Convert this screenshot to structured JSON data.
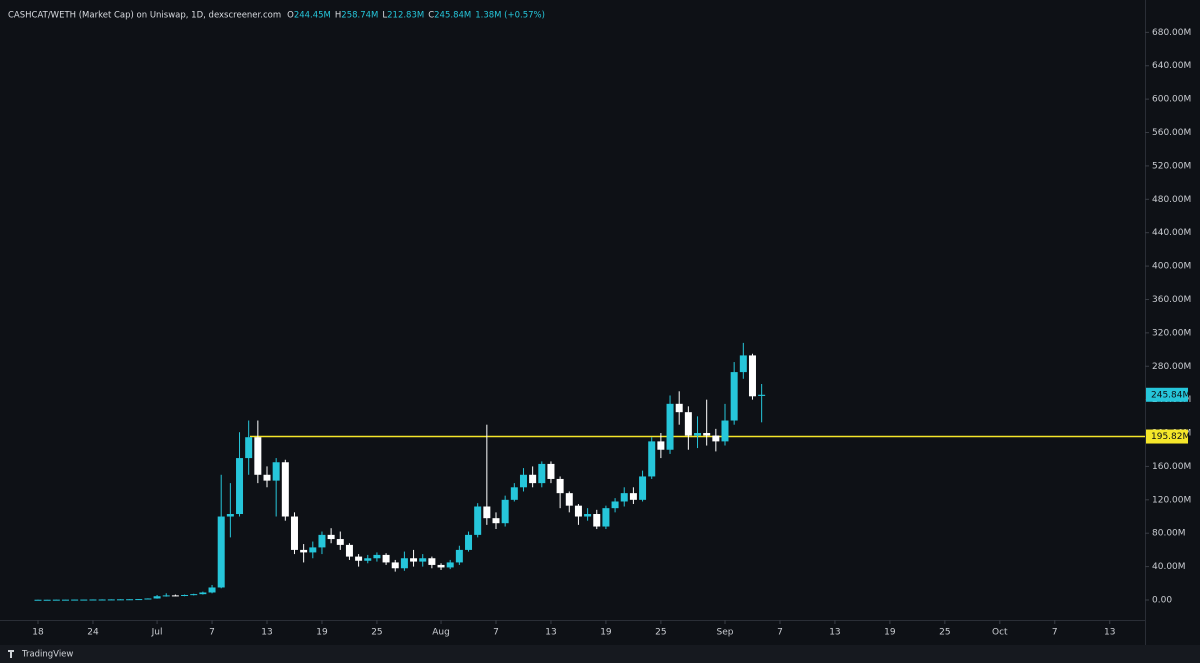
{
  "chart_data": {
    "type": "candlestick",
    "header": {
      "title": "CASHCAT/WETH (Market Cap) on Uniswap, 1D, dexscreener.com",
      "ohlc": [
        {
          "key": "O",
          "value": "244.45M"
        },
        {
          "key": "H",
          "value": "258.74M"
        },
        {
          "key": "L",
          "value": "212.83M"
        },
        {
          "key": "C",
          "value": "245.84M"
        }
      ],
      "change": "1.38M (+0.57%)"
    },
    "colors": {
      "up": "#26c6da",
      "down": "#ffffff",
      "level": "#f5e62a"
    },
    "ylim": [
      -12,
      708
    ],
    "yticks": [
      {
        "value": 0,
        "label": "0.00"
      },
      {
        "value": 40,
        "label": "40.00M"
      },
      {
        "value": 80,
        "label": "80.00M"
      },
      {
        "value": 120,
        "label": "120.00M"
      },
      {
        "value": 160,
        "label": "160.00M"
      },
      {
        "value": 200,
        "label": "200.00M"
      },
      {
        "value": 240,
        "label": "240.00M"
      },
      {
        "value": 280,
        "label": "280.00M"
      },
      {
        "value": 320,
        "label": "320.00M"
      },
      {
        "value": 360,
        "label": "360.00M"
      },
      {
        "value": 400,
        "label": "400.00M"
      },
      {
        "value": 440,
        "label": "440.00M"
      },
      {
        "value": 480,
        "label": "480.00M"
      },
      {
        "value": 520,
        "label": "520.00M"
      },
      {
        "value": 560,
        "label": "560.00M"
      },
      {
        "value": 600,
        "label": "600.00M"
      },
      {
        "value": 640,
        "label": "640.00M"
      },
      {
        "value": 680,
        "label": "680.00M"
      }
    ],
    "xticks": [
      {
        "value": "Jun 18",
        "label": "18"
      },
      {
        "value": "Jun 24",
        "label": "24"
      },
      {
        "value": "Jul 1",
        "label": "Jul"
      },
      {
        "value": "Jul 7",
        "label": "7"
      },
      {
        "value": "Jul 13",
        "label": "13"
      },
      {
        "value": "Jul 19",
        "label": "19"
      },
      {
        "value": "Jul 25",
        "label": "25"
      },
      {
        "value": "Aug 1",
        "label": "Aug"
      },
      {
        "value": "Aug 7",
        "label": "7"
      },
      {
        "value": "Aug 13",
        "label": "13"
      },
      {
        "value": "Aug 19",
        "label": "19"
      },
      {
        "value": "Aug 25",
        "label": "25"
      },
      {
        "value": "Sep 1",
        "label": "Sep"
      },
      {
        "value": "Sep 7",
        "label": "7"
      },
      {
        "value": "Sep 13",
        "label": "13"
      },
      {
        "value": "Sep 19",
        "label": "19"
      },
      {
        "value": "Sep 25",
        "label": "25"
      },
      {
        "value": "Oct 1",
        "label": "Oct"
      },
      {
        "value": "Oct 7",
        "label": "7"
      },
      {
        "value": "Oct 13",
        "label": "13"
      }
    ],
    "last_price": {
      "value": 245.84,
      "label": "245.84M"
    },
    "level": {
      "value": 195.82,
      "label": "195.82M"
    },
    "candles": [
      {
        "x": "Jun 18",
        "open": 0.3,
        "high": 0.4,
        "low": 0.2,
        "close": 0.3
      },
      {
        "x": "Jun 19",
        "open": 0.3,
        "high": 0.4,
        "low": 0.2,
        "close": 0.3
      },
      {
        "x": "Jun 20",
        "open": 0.3,
        "high": 0.5,
        "low": 0.2,
        "close": 0.4
      },
      {
        "x": "Jun 21",
        "open": 0.4,
        "high": 0.5,
        "low": 0.3,
        "close": 0.4
      },
      {
        "x": "Jun 22",
        "open": 0.4,
        "high": 0.6,
        "low": 0.3,
        "close": 0.5
      },
      {
        "x": "Jun 23",
        "open": 0.5,
        "high": 0.6,
        "low": 0.4,
        "close": 0.5
      },
      {
        "x": "Jun 24",
        "open": 0.5,
        "high": 0.7,
        "low": 0.4,
        "close": 0.6
      },
      {
        "x": "Jun 25",
        "open": 0.6,
        "high": 0.8,
        "low": 0.5,
        "close": 0.6
      },
      {
        "x": "Jun 26",
        "open": 0.6,
        "high": 0.8,
        "low": 0.5,
        "close": 0.7
      },
      {
        "x": "Jun 27",
        "open": 0.7,
        "high": 0.9,
        "low": 0.6,
        "close": 0.8
      },
      {
        "x": "Jun 28",
        "open": 0.8,
        "high": 1,
        "low": 0.7,
        "close": 0.9
      },
      {
        "x": "Jun 29",
        "open": 0.9,
        "high": 1.2,
        "low": 0.8,
        "close": 1.1
      },
      {
        "x": "Jun 30",
        "open": 1.1,
        "high": 2,
        "low": 1,
        "close": 1.8
      },
      {
        "x": "Jul 1",
        "open": 1.8,
        "high": 6,
        "low": 1.5,
        "close": 4.5
      },
      {
        "x": "Jul 2",
        "open": 4.5,
        "high": 8,
        "low": 4,
        "close": 5.5
      },
      {
        "x": "Jul 3",
        "open": 5.5,
        "high": 6.5,
        "low": 4.5,
        "close": 5
      },
      {
        "x": "Jul 4",
        "open": 5,
        "high": 6.5,
        "low": 4.5,
        "close": 6
      },
      {
        "x": "Jul 5",
        "open": 6,
        "high": 7.5,
        "low": 5.5,
        "close": 7
      },
      {
        "x": "Jul 6",
        "open": 7,
        "high": 10,
        "low": 6.5,
        "close": 9
      },
      {
        "x": "Jul 7",
        "open": 9,
        "high": 18,
        "low": 8,
        "close": 15
      },
      {
        "x": "Jul 8",
        "open": 15,
        "high": 150,
        "low": 14,
        "close": 100
      },
      {
        "x": "Jul 9",
        "open": 100,
        "high": 140,
        "low": 75,
        "close": 103
      },
      {
        "x": "Jul 10",
        "open": 103,
        "high": 201,
        "low": 100,
        "close": 170
      },
      {
        "x": "Jul 11",
        "open": 170,
        "high": 215,
        "low": 150,
        "close": 195
      },
      {
        "x": "Jul 12",
        "open": 195,
        "high": 215,
        "low": 140,
        "close": 150
      },
      {
        "x": "Jul 13",
        "open": 150,
        "high": 160,
        "low": 135,
        "close": 143
      },
      {
        "x": "Jul 14",
        "open": 143,
        "high": 170,
        "low": 100,
        "close": 165
      },
      {
        "x": "Jul 15",
        "open": 165,
        "high": 168,
        "low": 95,
        "close": 100
      },
      {
        "x": "Jul 16",
        "open": 100,
        "high": 105,
        "low": 55,
        "close": 60
      },
      {
        "x": "Jul 17",
        "open": 60,
        "high": 67,
        "low": 45,
        "close": 57
      },
      {
        "x": "Jul 18",
        "open": 57,
        "high": 70,
        "low": 50,
        "close": 63
      },
      {
        "x": "Jul 19",
        "open": 63,
        "high": 82,
        "low": 55,
        "close": 78
      },
      {
        "x": "Jul 20",
        "open": 78,
        "high": 86,
        "low": 68,
        "close": 73
      },
      {
        "x": "Jul 21",
        "open": 73,
        "high": 82,
        "low": 60,
        "close": 66
      },
      {
        "x": "Jul 22",
        "open": 66,
        "high": 68,
        "low": 48,
        "close": 52
      },
      {
        "x": "Jul 23",
        "open": 52,
        "high": 55,
        "low": 40,
        "close": 47
      },
      {
        "x": "Jul 24",
        "open": 47,
        "high": 54,
        "low": 44,
        "close": 50
      },
      {
        "x": "Jul 25",
        "open": 50,
        "high": 57,
        "low": 46,
        "close": 54
      },
      {
        "x": "Jul 26",
        "open": 54,
        "high": 56,
        "low": 42,
        "close": 45
      },
      {
        "x": "Jul 27",
        "open": 45,
        "high": 48,
        "low": 34,
        "close": 38
      },
      {
        "x": "Jul 28",
        "open": 38,
        "high": 58,
        "low": 35,
        "close": 50
      },
      {
        "x": "Jul 29",
        "open": 50,
        "high": 60,
        "low": 40,
        "close": 46
      },
      {
        "x": "Jul 30",
        "open": 46,
        "high": 55,
        "low": 40,
        "close": 50
      },
      {
        "x": "Jul 31",
        "open": 50,
        "high": 52,
        "low": 38,
        "close": 42
      },
      {
        "x": "Aug 1",
        "open": 42,
        "high": 44,
        "low": 36,
        "close": 39
      },
      {
        "x": "Aug 2",
        "open": 39,
        "high": 48,
        "low": 37,
        "close": 45
      },
      {
        "x": "Aug 3",
        "open": 45,
        "high": 65,
        "low": 42,
        "close": 60
      },
      {
        "x": "Aug 4",
        "open": 60,
        "high": 82,
        "low": 58,
        "close": 78
      },
      {
        "x": "Aug 5",
        "open": 78,
        "high": 116,
        "low": 75,
        "close": 112
      },
      {
        "x": "Aug 6",
        "open": 112,
        "high": 210,
        "low": 90,
        "close": 98
      },
      {
        "x": "Aug 7",
        "open": 98,
        "high": 105,
        "low": 85,
        "close": 92
      },
      {
        "x": "Aug 8",
        "open": 92,
        "high": 125,
        "low": 88,
        "close": 120
      },
      {
        "x": "Aug 9",
        "open": 120,
        "high": 140,
        "low": 118,
        "close": 135
      },
      {
        "x": "Aug 10",
        "open": 135,
        "high": 158,
        "low": 130,
        "close": 150
      },
      {
        "x": "Aug 11",
        "open": 150,
        "high": 160,
        "low": 135,
        "close": 140
      },
      {
        "x": "Aug 12",
        "open": 140,
        "high": 166,
        "low": 135,
        "close": 163
      },
      {
        "x": "Aug 13",
        "open": 163,
        "high": 166,
        "low": 140,
        "close": 145
      },
      {
        "x": "Aug 14",
        "open": 145,
        "high": 148,
        "low": 110,
        "close": 128
      },
      {
        "x": "Aug 15",
        "open": 128,
        "high": 130,
        "low": 105,
        "close": 113
      },
      {
        "x": "Aug 16",
        "open": 113,
        "high": 115,
        "low": 90,
        "close": 100
      },
      {
        "x": "Aug 17",
        "open": 100,
        "high": 110,
        "low": 95,
        "close": 103
      },
      {
        "x": "Aug 18",
        "open": 103,
        "high": 108,
        "low": 85,
        "close": 88
      },
      {
        "x": "Aug 19",
        "open": 88,
        "high": 113,
        "low": 85,
        "close": 110
      },
      {
        "x": "Aug 20",
        "open": 110,
        "high": 122,
        "low": 105,
        "close": 118
      },
      {
        "x": "Aug 21",
        "open": 118,
        "high": 135,
        "low": 112,
        "close": 128
      },
      {
        "x": "Aug 22",
        "open": 128,
        "high": 135,
        "low": 115,
        "close": 120
      },
      {
        "x": "Aug 23",
        "open": 120,
        "high": 155,
        "low": 118,
        "close": 148
      },
      {
        "x": "Aug 24",
        "open": 148,
        "high": 195,
        "low": 145,
        "close": 190
      },
      {
        "x": "Aug 25",
        "open": 190,
        "high": 200,
        "low": 170,
        "close": 180
      },
      {
        "x": "Aug 26",
        "open": 180,
        "high": 245,
        "low": 175,
        "close": 235
      },
      {
        "x": "Aug 27",
        "open": 235,
        "high": 250,
        "low": 210,
        "close": 225
      },
      {
        "x": "Aug 28",
        "open": 225,
        "high": 232,
        "low": 180,
        "close": 197
      },
      {
        "x": "Aug 29",
        "open": 197,
        "high": 220,
        "low": 182,
        "close": 200
      },
      {
        "x": "Aug 30",
        "open": 200,
        "high": 240,
        "low": 185,
        "close": 197
      },
      {
        "x": "Aug 31",
        "open": 197,
        "high": 205,
        "low": 178,
        "close": 190
      },
      {
        "x": "Sep 1",
        "open": 190,
        "high": 235,
        "low": 185,
        "close": 215
      },
      {
        "x": "Sep 2",
        "open": 215,
        "high": 285,
        "low": 210,
        "close": 273
      },
      {
        "x": "Sep 3",
        "open": 273,
        "high": 308,
        "low": 265,
        "close": 293
      },
      {
        "x": "Sep 4",
        "open": 293,
        "high": 295,
        "low": 240,
        "close": 244
      },
      {
        "x": "Sep 5",
        "open": 244.45,
        "high": 258.74,
        "low": 212.83,
        "close": 245.84
      }
    ]
  }
}
